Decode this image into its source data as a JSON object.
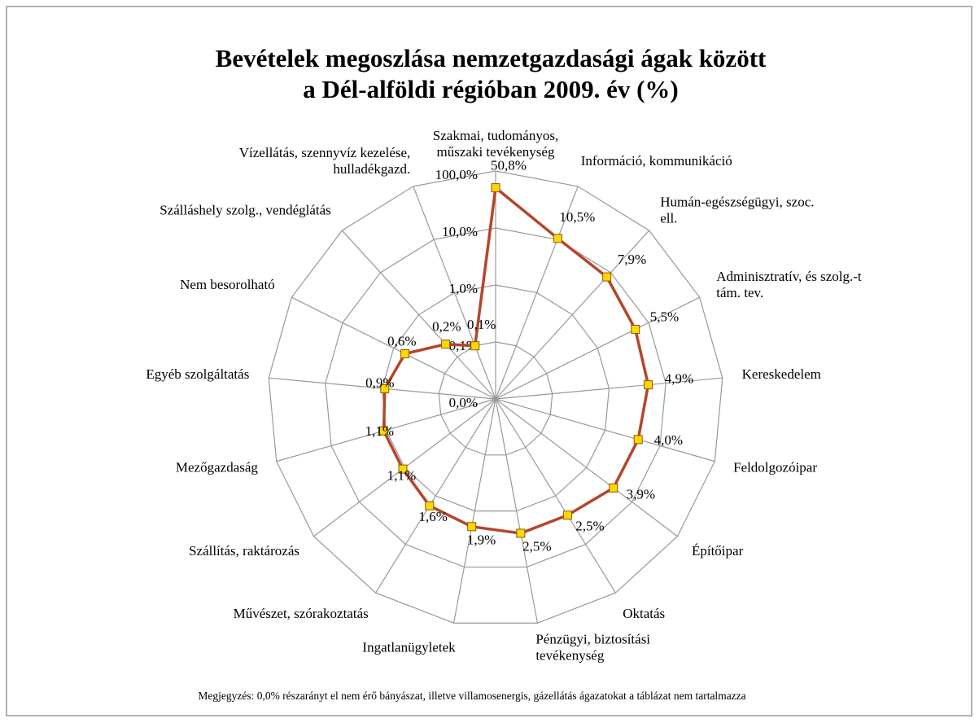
{
  "chart_data": {
    "type": "radar",
    "title": "Bevételek megoszlása nemzetgazdasági ágak között\na Dél-alföldi régióban 2009. év (%)",
    "categories": [
      "Szakmai, tudományos,\nműszaki tevékenység",
      "Információ, kommunikáció",
      "Humán-egészségügyi, szoc.\nell.",
      "Adminisztratív, és szolg.-t\ntám. tev.",
      "Kereskedelem",
      "Feldolgozóipar",
      "Építőipar",
      "Oktatás",
      "Pénzügyi, biztosítási\ntevékenység",
      "Ingatlanügyletek",
      "Művészet, szórakoztatás",
      "Szállítás, raktározás",
      "Mezőgazdaság",
      "Egyéb szolgáltatás",
      "Nem besorolható",
      "Szálláshely szolg.,  vendéglátás",
      "Vízellátás, szennyvíz kezelése,\nhulladékgazd."
    ],
    "values": [
      50.8,
      10.5,
      7.9,
      5.5,
      4.9,
      4.0,
      3.9,
      2.5,
      2.5,
      1.9,
      1.6,
      1.1,
      1.1,
      0.9,
      0.6,
      0.2,
      0.1
    ],
    "value_labels": [
      "50,8%",
      "10,5%",
      "7,9%",
      "5,5%",
      "4,9%",
      "4,0%",
      "3,9%",
      "2,5%",
      "2,5%",
      "1,9%",
      "1,6%",
      "1,1%",
      "1,1%",
      "0,9%",
      "0,6%",
      "0,2%",
      "0,1%"
    ],
    "color": "#b5452a",
    "marker_color": "#ffd700",
    "log_scale": true,
    "ylim": [
      0.01,
      100
    ],
    "yticks": [
      {
        "value": 0.01,
        "label": "0,0%"
      },
      {
        "value": 0.1,
        "label": "0,1%"
      },
      {
        "value": 1,
        "label": "1,0%"
      },
      {
        "value": 10,
        "label": "10,0%"
      },
      {
        "value": 100,
        "label": "100,0%"
      }
    ],
    "grid": true,
    "note": "Megjegyzés: 0,0%  részarányt el nem érő bányászat, illetve villamosenergis, gázellátás ágazatokat a táblázat nem tartalmazza"
  }
}
